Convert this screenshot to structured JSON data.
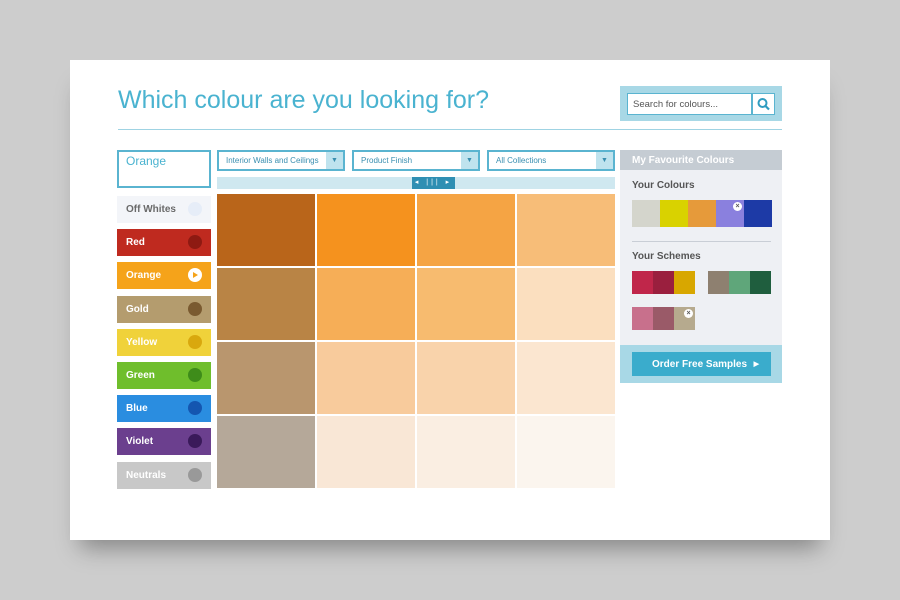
{
  "header": {
    "title": "Which colour are you looking for?",
    "search_placeholder": "Search for colours..."
  },
  "filter": {
    "value": "Orange",
    "categories": [
      "Off Whites",
      "Red",
      "Orange",
      "Gold",
      "Yellow",
      "Green",
      "Blue",
      "Violet",
      "Neutrals"
    ]
  },
  "dropdowns": [
    "Interior Walls and Ceilings",
    "Product Finish",
    "All Collections"
  ],
  "favourites": {
    "header": "My Favourite Colours",
    "your_colours": "Your Colours",
    "your_schemes": "Your Schemes",
    "order_button": "Order Free Samples"
  }
}
